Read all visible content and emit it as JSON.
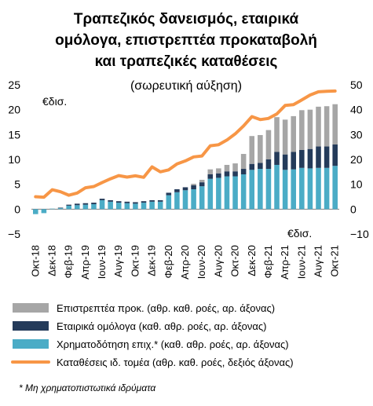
{
  "chart_data": {
    "type": "bar",
    "stacked": true,
    "title_lines": [
      "Τραπεζικός δανεισμός, εταιρικά",
      "ομόλογα, επιστρεπτέα προκαταβολή",
      "και τραπεζικές καταθέσεις"
    ],
    "subtitle": "(σωρευτική αύξηση)",
    "left_axis_unit": "€δισ.",
    "right_axis_unit": "€δισ.",
    "left_axis": {
      "min": -5,
      "max": 25,
      "ticks": [
        -5,
        0,
        5,
        10,
        15,
        20,
        25
      ]
    },
    "right_axis": {
      "min": -10,
      "max": 50,
      "ticks": [
        -10,
        0,
        10,
        20,
        30,
        40,
        50
      ]
    },
    "grid": false,
    "legend_position": "bottom",
    "categories": [
      "Οκτ-18",
      "Νοε-18",
      "Δεκ-18",
      "Ιαν-19",
      "Φεβ-19",
      "Μαρ-19",
      "Απρ-19",
      "Μαϊ-19",
      "Ιουν-19",
      "Ιουλ-19",
      "Αυγ-19",
      "Σεπ-19",
      "Οκτ-19",
      "Νοε-19",
      "Δεκ-19",
      "Ιαν-20",
      "Φεβ-20",
      "Μαρ-20",
      "Απρ-20",
      "Μαϊ-20",
      "Ιουν-20",
      "Ιουλ-20",
      "Αυγ-20",
      "Σεπ-20",
      "Οκτ-20",
      "Νοε-20",
      "Δεκ-20",
      "Ιαν-21",
      "Φεβ-21",
      "Μαρ-21",
      "Απρ-21",
      "Μαϊ-21",
      "Ιουν-21",
      "Ιουλ-21",
      "Αυγ-21",
      "Σεπ-21",
      "Οκτ-21"
    ],
    "tick_labels": [
      "Οκτ-18",
      "Δεκ-18",
      "Φεβ-19",
      "Απρ-19",
      "Ιουν-19",
      "Αυγ-19",
      "Οκτ-19",
      "Δεκ-19",
      "Φεβ-20",
      "Απρ-20",
      "Ιουν-20",
      "Αυγ-20",
      "Οκτ-20",
      "Δεκ-20",
      "Φεβ-21",
      "Απρ-21",
      "Ιουν-21",
      "Αυγ-21",
      "Οκτ-21"
    ],
    "series": [
      {
        "name": "Επιστρεπτέα προκ. (αθρ. καθ. ροές, αρ. άξονας)",
        "type": "bar",
        "axis": "left",
        "color": "#a6a6a6",
        "values": [
          0,
          0,
          0,
          0,
          0,
          0,
          0,
          0,
          0,
          0,
          0,
          0,
          0,
          0,
          0,
          0,
          0,
          0,
          0,
          0.3,
          0.5,
          1.0,
          1.0,
          1.3,
          1.6,
          3.0,
          5.6,
          5.6,
          5.9,
          7.0,
          7.0,
          7.2,
          8.0,
          7.9,
          8.0,
          8.1,
          8.1
        ]
      },
      {
        "name": "Εταιρικά ομόλογα (καθ. αθρ. ροές, αρ. άξονας)",
        "type": "bar",
        "axis": "left",
        "color": "#243b5a",
        "values": [
          0,
          0,
          0,
          0.1,
          0.2,
          0.3,
          0.3,
          0.3,
          0.3,
          0.3,
          0.3,
          0.3,
          0.3,
          0.3,
          0.3,
          0.3,
          0.5,
          0.6,
          0.6,
          0.8,
          0.8,
          0.9,
          0.9,
          1.0,
          1.0,
          1.1,
          1.2,
          1.2,
          1.9,
          2.6,
          3.1,
          3.5,
          3.6,
          3.9,
          4.3,
          4.3,
          4.3
        ]
      },
      {
        "name": "Χρηματοδότηση επιχ.* (καθ. αθρ. ροές, αρ. άξονας)",
        "type": "bar",
        "axis": "left",
        "color": "#4bacc6",
        "values": [
          -1.0,
          -0.8,
          0.1,
          0.2,
          0.7,
          0.8,
          0.9,
          1.0,
          1.8,
          1.5,
          1.3,
          1.2,
          1.1,
          1.3,
          1.5,
          1.5,
          2.8,
          3.4,
          3.8,
          4.0,
          4.6,
          6.1,
          6.3,
          6.6,
          6.6,
          7.0,
          7.9,
          8.1,
          8.1,
          8.9,
          7.9,
          8.0,
          8.3,
          8.2,
          8.3,
          8.3,
          8.7
        ]
      },
      {
        "name": "Καταθέσεις ιδ. τομέα (αθρ. καθ. ροές, δεξιός άξονας)",
        "type": "line",
        "axis": "right",
        "color": "#f79646",
        "values": [
          5.0,
          4.8,
          7.8,
          7.0,
          5.6,
          6.5,
          8.6,
          9.1,
          10.7,
          12.2,
          13.5,
          12.9,
          13.4,
          12.8,
          17.0,
          15.0,
          15.8,
          18.2,
          19.4,
          21.0,
          21.4,
          25.5,
          25.9,
          27.8,
          30.3,
          33.5,
          37.2,
          36.0,
          36.5,
          38.3,
          41.7,
          42.0,
          43.9,
          45.9,
          47.2,
          47.4,
          47.5
        ]
      }
    ]
  },
  "footnote": "* Μη χρηματοπιστωτικά ιδρύματα"
}
